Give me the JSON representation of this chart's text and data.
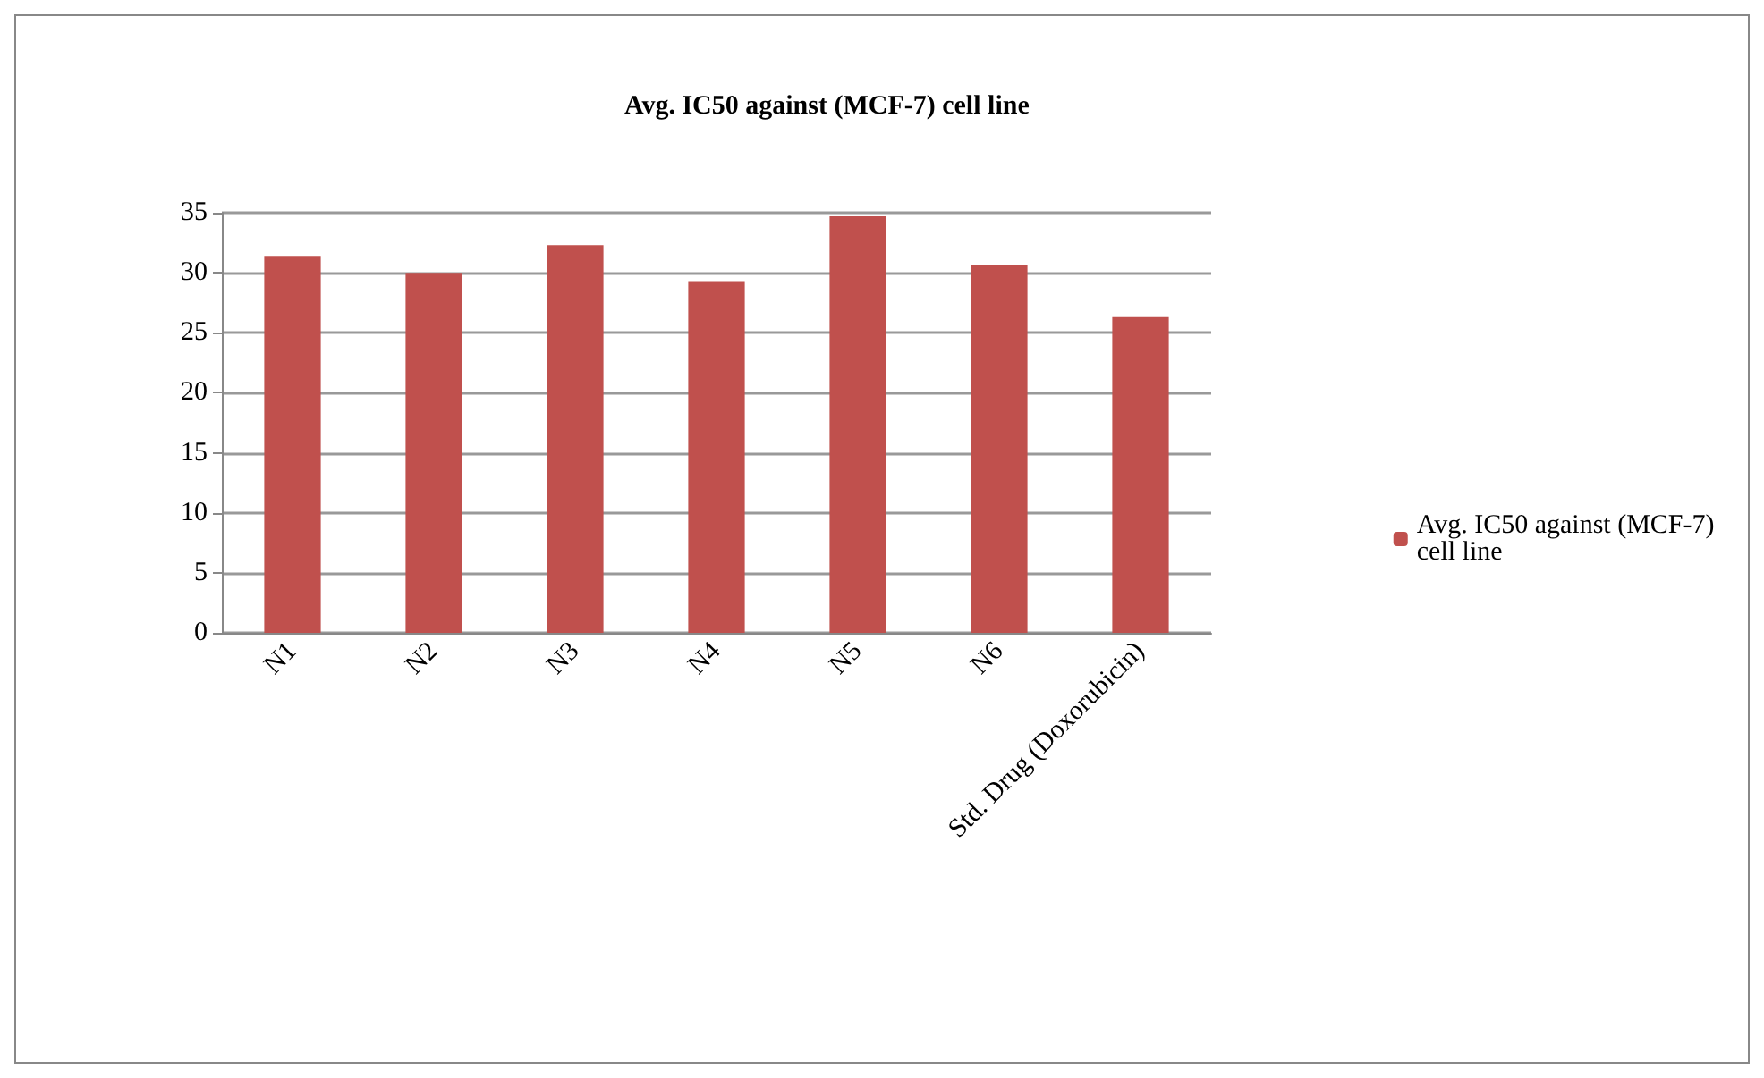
{
  "chart_data": {
    "type": "bar",
    "title": "Avg. IC50 against (MCF-7) cell line",
    "categories": [
      "N1",
      "N2",
      "N3",
      "N4",
      "N5",
      "N6",
      "Std. Drug (Doxorubicin)"
    ],
    "series": [
      {
        "name": "Avg. IC50 against (MCF-7) cell line",
        "color": "#c0504d",
        "values": [
          31.4,
          30.0,
          32.3,
          29.3,
          34.7,
          30.6,
          26.3
        ]
      }
    ],
    "ylim": [
      0,
      35
    ],
    "yticks": [
      0,
      5,
      10,
      15,
      20,
      25,
      30,
      35
    ],
    "grid": "y",
    "legend": "right"
  }
}
